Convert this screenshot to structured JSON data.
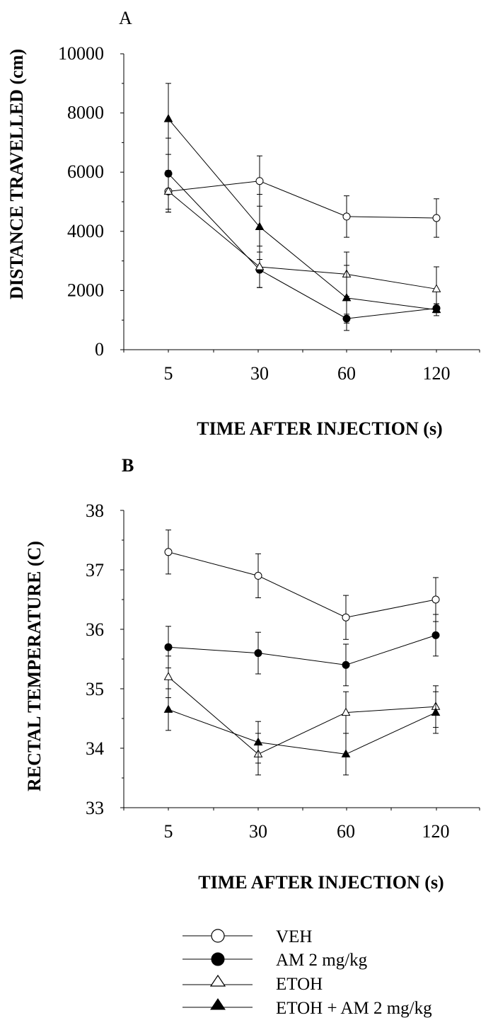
{
  "chart_data": [
    {
      "panel": "A",
      "type": "line",
      "xlabel": "TIME AFTER INJECTION (s)",
      "ylabel": "DISTANCE TRAVELLED (cm)",
      "categories": [
        "5",
        "30",
        "60",
        "120"
      ],
      "ylim": [
        0,
        10000
      ],
      "yticks": [
        "0",
        "2000",
        "4000",
        "6000",
        "8000",
        "10000"
      ],
      "series": [
        {
          "name": "VEH",
          "marker": "open-circle",
          "values": [
            5350,
            5700,
            4500,
            4450
          ],
          "errors": [
            700,
            850,
            700,
            650
          ]
        },
        {
          "name": "AM 2 mg/kg",
          "marker": "filled-circle",
          "values": [
            5950,
            2700,
            1050,
            1400
          ],
          "errors": [
            1200,
            600,
            150,
            150
          ]
        },
        {
          "name": "ETOH",
          "marker": "open-triangle",
          "values": [
            5350,
            2800,
            2550,
            2050
          ],
          "errors": [
            700,
            700,
            750,
            750
          ]
        },
        {
          "name": "ETOH + AM 2 mg/kg",
          "marker": "filled-triangle",
          "values": [
            7800,
            4150,
            1750,
            1350
          ],
          "errors": [
            1200,
            1100,
            1100,
            200
          ]
        }
      ]
    },
    {
      "panel": "B",
      "type": "line",
      "xlabel": "TIME AFTER INJECTION  (s)",
      "ylabel": "RECTAL TEMPERATURE (C)",
      "categories": [
        "5",
        "30",
        "60",
        "120"
      ],
      "ylim": [
        33,
        38
      ],
      "yticks": [
        "33",
        "34",
        "35",
        "36",
        "37",
        "38"
      ],
      "series": [
        {
          "name": "VEH",
          "marker": "open-circle",
          "values": [
            37.3,
            36.9,
            36.2,
            36.5
          ],
          "errors": [
            0.37,
            0.37,
            0.37,
            0.37
          ]
        },
        {
          "name": "AM 2 mg/kg",
          "marker": "filled-circle",
          "values": [
            35.7,
            35.6,
            35.4,
            35.9
          ],
          "errors": [
            0.35,
            0.35,
            0.35,
            0.35
          ]
        },
        {
          "name": "ETOH",
          "marker": "open-triangle",
          "values": [
            35.2,
            33.9,
            34.6,
            34.7
          ],
          "errors": [
            0.35,
            0.35,
            0.35,
            0.35
          ]
        },
        {
          "name": "ETOH + AM 2 mg/kg",
          "marker": "filled-triangle",
          "values": [
            34.65,
            34.1,
            33.9,
            34.6
          ],
          "errors": [
            0.35,
            0.35,
            0.35,
            0.35
          ]
        }
      ]
    }
  ],
  "legend": {
    "entries": [
      {
        "label": "VEH",
        "marker": "open-circle"
      },
      {
        "label": "AM 2 mg/kg",
        "marker": "filled-circle"
      },
      {
        "label": "ETOH",
        "marker": "open-triangle"
      },
      {
        "label": "ETOH + AM 2 mg/kg",
        "marker": "filled-triangle"
      }
    ]
  }
}
